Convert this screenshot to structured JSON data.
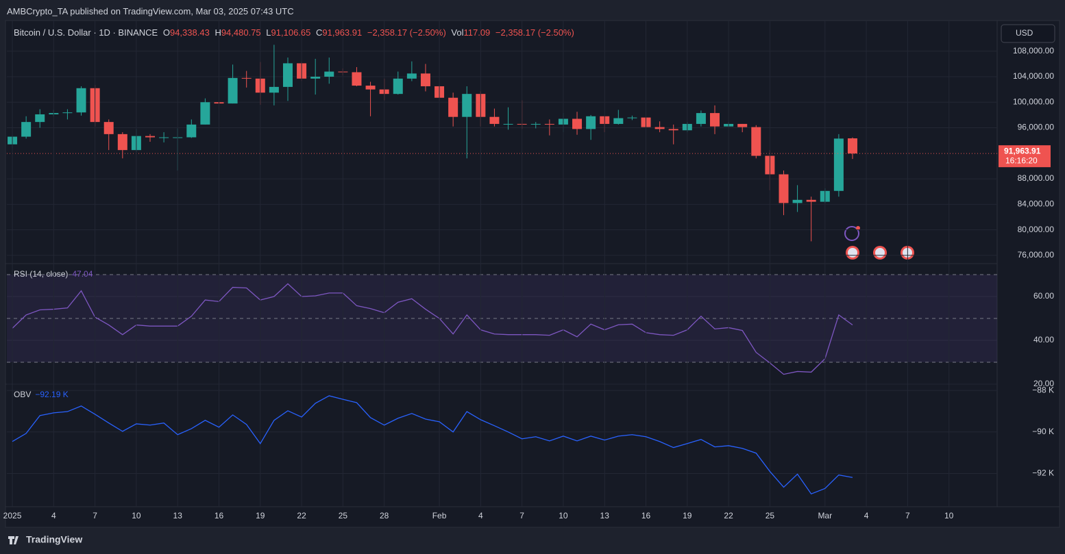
{
  "header": {
    "publisher": "AMBCrypto_TA published on TradingView.com, Mar 03, 2025 07:43 UTC",
    "symbol": "Bitcoin / U.S. Dollar · 1D · BINANCE",
    "o_key": "O",
    "o": "94,338.43",
    "h_key": "H",
    "h": "94,480.75",
    "l_key": "L",
    "l": "91,106.65",
    "c_key": "C",
    "c": "91,963.91",
    "change": "−2,358.17 (−2.50%)",
    "vol_key": "Vol",
    "vol": "117.09",
    "vol_change": "−2,358.17 (−2.50%)",
    "currency": "USD",
    "brand": "TradingView"
  },
  "chart_data": [
    {
      "type": "candlestick",
      "up_color": "#26a69a",
      "down_color": "#ef5350",
      "xlim": [
        -0.4,
        71.5
      ],
      "ylim": [
        74700,
        112800
      ],
      "grid": true,
      "yticks": [
        {
          "value": 76000,
          "label": "76,000.00"
        },
        {
          "value": 80000,
          "label": "80,000.00"
        },
        {
          "value": 84000,
          "label": "84,000.00"
        },
        {
          "value": 88000,
          "label": "88,000.00"
        },
        {
          "value": 96000,
          "label": "96,000.00"
        },
        {
          "value": 100000,
          "label": "100,000.00"
        },
        {
          "value": 104000,
          "label": "104,000.00"
        },
        {
          "value": 108000,
          "label": "108,000.00"
        }
      ],
      "last_price_label": "91,963.91",
      "countdown": "16:16:20",
      "open": [
        93400,
        94600,
        96900,
        98100,
        98300,
        98400,
        102200,
        96900,
        95000,
        92500,
        94700,
        94500,
        94500,
        94500,
        96500,
        100000,
        99800,
        103800,
        103700,
        101500,
        102400,
        106100,
        103700,
        104000,
        104800,
        104700,
        102600,
        102000,
        101300,
        103700,
        104500,
        102500,
        100700,
        97700,
        101300,
        97700,
        96600,
        96600,
        96500,
        96600,
        96500,
        97400,
        95800,
        97800,
        96600,
        97500,
        97600,
        96100,
        95800,
        95600,
        96600,
        98300,
        96200,
        96600,
        96100,
        91600,
        88700,
        84200,
        84700,
        84400,
        86100,
        94338.43
      ],
      "high": [
        94900,
        97800,
        98900,
        98800,
        98900,
        102500,
        102700,
        97300,
        95300,
        95800,
        95000,
        95300,
        95900,
        97300,
        100600,
        100800,
        105900,
        104900,
        106300,
        109000,
        107000,
        106300,
        106800,
        107000,
        105300,
        105500,
        103200,
        103700,
        104800,
        106400,
        106000,
        102700,
        101500,
        102500,
        101700,
        99000,
        99200,
        100300,
        96900,
        97300,
        98300,
        98500,
        98000,
        97700,
        98800,
        97900,
        97700,
        97000,
        96500,
        96900,
        98700,
        99500,
        96900,
        96600,
        96400,
        92500,
        89300,
        87000,
        85200,
        86500,
        95000,
        94480.75
      ],
      "low": [
        92800,
        94300,
        96000,
        97800,
        97300,
        97900,
        96200,
        92500,
        91200,
        92200,
        93800,
        93700,
        89300,
        94400,
        96500,
        97400,
        99800,
        102300,
        99600,
        99500,
        100200,
        103300,
        101200,
        102900,
        104200,
        102500,
        97800,
        100300,
        101200,
        103300,
        101700,
        100300,
        96200,
        91200,
        96200,
        96200,
        95700,
        95800,
        95900,
        94800,
        95300,
        94900,
        94100,
        95300,
        96500,
        97200,
        96000,
        95300,
        93400,
        95300,
        96200,
        95000,
        96100,
        95300,
        91200,
        86200,
        82300,
        82800,
        78200,
        84200,
        85200,
        91106.65
      ],
      "close": [
        94600,
        96900,
        98100,
        98300,
        98400,
        102200,
        96900,
        95000,
        92500,
        94700,
        94500,
        94500,
        94500,
        96500,
        100000,
        99800,
        103800,
        103700,
        101500,
        102400,
        106100,
        103700,
        104000,
        104800,
        104700,
        102600,
        102000,
        101300,
        103700,
        104500,
        102500,
        100700,
        97700,
        101300,
        97700,
        96600,
        96600,
        96500,
        96600,
        96500,
        97400,
        95800,
        97800,
        96600,
        97500,
        97600,
        96100,
        95800,
        95600,
        96600,
        98300,
        96200,
        96600,
        96100,
        91600,
        88700,
        84200,
        84700,
        84400,
        86100,
        94300,
        91963.91
      ]
    },
    {
      "type": "line",
      "title": "RSI (14, close)",
      "last_label": "47.04",
      "xlim": [
        -0.4,
        71.5
      ],
      "ylim": [
        20,
        75
      ],
      "levels": [
        30,
        50,
        70
      ],
      "band_color": "#7e57c2",
      "yticks": [
        {
          "value": 20,
          "label": "20.00"
        },
        {
          "value": 40,
          "label": "40.00"
        },
        {
          "value": 60,
          "label": "60.00"
        }
      ],
      "series": [
        {
          "color": "#7e57c2",
          "values": [
            45.5,
            51.6,
            53.9,
            54.2,
            54.8,
            62.6,
            50.6,
            47,
            42.6,
            47,
            46.5,
            46.5,
            46.5,
            51,
            58.4,
            57.7,
            64.2,
            63.9,
            58.4,
            60,
            65.8,
            60,
            60.3,
            61.6,
            61.6,
            55.8,
            54.5,
            52.6,
            57.4,
            59,
            54.2,
            50,
            42.9,
            51.6,
            44.8,
            42.9,
            42.6,
            42.6,
            42.6,
            42.3,
            44.8,
            41.6,
            47.4,
            44.8,
            47.1,
            47.4,
            43.5,
            42.6,
            42.3,
            44.8,
            51,
            45.2,
            45.8,
            44.5,
            34.5,
            29.7,
            24.5,
            25.8,
            25.5,
            31.6,
            51.6,
            47.04
          ]
        }
      ]
    },
    {
      "type": "line",
      "title": "OBV",
      "last_label": "−92.19 K",
      "xlim": [
        -0.4,
        71.5
      ],
      "ylim": [
        -93.6,
        -87.7
      ],
      "yticks": [
        {
          "value": -92,
          "label": "−92 K"
        },
        {
          "value": -90,
          "label": "−90 K"
        },
        {
          "value": -88,
          "label": "−88 K"
        }
      ],
      "xticks": [
        {
          "value": 0,
          "label": "2025"
        },
        {
          "value": 3,
          "label": "4"
        },
        {
          "value": 6,
          "label": "7"
        },
        {
          "value": 9,
          "label": "10"
        },
        {
          "value": 12,
          "label": "13"
        },
        {
          "value": 15,
          "label": "16"
        },
        {
          "value": 18,
          "label": "19"
        },
        {
          "value": 21,
          "label": "22"
        },
        {
          "value": 24,
          "label": "25"
        },
        {
          "value": 27,
          "label": "28"
        },
        {
          "value": 31,
          "label": "Feb"
        },
        {
          "value": 34,
          "label": "4"
        },
        {
          "value": 37,
          "label": "7"
        },
        {
          "value": 40,
          "label": "10"
        },
        {
          "value": 43,
          "label": "13"
        },
        {
          "value": 46,
          "label": "16"
        },
        {
          "value": 49,
          "label": "19"
        },
        {
          "value": 52,
          "label": "22"
        },
        {
          "value": 55,
          "label": "25"
        },
        {
          "value": 59,
          "label": "Mar"
        },
        {
          "value": 62,
          "label": "4"
        },
        {
          "value": 65,
          "label": "7"
        },
        {
          "value": 68,
          "label": "10"
        }
      ],
      "series": [
        {
          "color": "#2962ff",
          "values": [
            -90.46,
            -90.07,
            -89.21,
            -89.08,
            -89.02,
            -88.75,
            -89.15,
            -89.57,
            -89.97,
            -89.61,
            -89.67,
            -89.57,
            -90.13,
            -89.84,
            -89.44,
            -89.77,
            -89.18,
            -89.64,
            -90.56,
            -89.44,
            -88.98,
            -89.28,
            -88.62,
            -88.26,
            -88.43,
            -88.59,
            -89.31,
            -89.67,
            -89.34,
            -89.11,
            -89.38,
            -89.51,
            -90,
            -89.02,
            -89.41,
            -89.7,
            -90,
            -90.33,
            -90.23,
            -90.43,
            -90.2,
            -90.43,
            -90.2,
            -90.39,
            -90.2,
            -90.13,
            -90.23,
            -90.46,
            -90.75,
            -90.56,
            -90.36,
            -90.72,
            -90.66,
            -90.79,
            -91.02,
            -91.9,
            -92.66,
            -92.03,
            -92.98,
            -92.72,
            -92.07,
            -92.19
          ]
        }
      ]
    }
  ]
}
